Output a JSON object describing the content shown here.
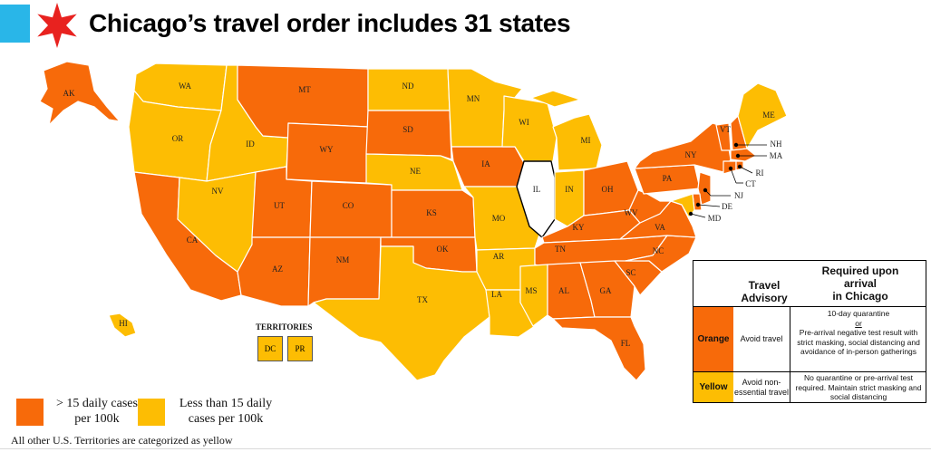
{
  "title": "Chicago’s travel order includes 31 states",
  "colors": {
    "orange": "#f76a0a",
    "yellow": "#fdbd03",
    "accent_blue": "#29b6e8",
    "star_red": "#e8221f",
    "illinois": "#ffffff"
  },
  "states": {
    "AK": {
      "label": "AK",
      "category": "orange"
    },
    "WA": {
      "label": "WA",
      "category": "yellow"
    },
    "OR": {
      "label": "OR",
      "category": "yellow"
    },
    "CA": {
      "label": "CA",
      "category": "orange"
    },
    "ID": {
      "label": "ID",
      "category": "yellow"
    },
    "NV": {
      "label": "NV",
      "category": "yellow"
    },
    "MT": {
      "label": "MT",
      "category": "orange"
    },
    "WY": {
      "label": "WY",
      "category": "orange"
    },
    "UT": {
      "label": "UT",
      "category": "orange"
    },
    "AZ": {
      "label": "AZ",
      "category": "orange"
    },
    "CO": {
      "label": "CO",
      "category": "orange"
    },
    "NM": {
      "label": "NM",
      "category": "orange"
    },
    "ND": {
      "label": "ND",
      "category": "yellow"
    },
    "SD": {
      "label": "SD",
      "category": "orange"
    },
    "NE": {
      "label": "NE",
      "category": "yellow"
    },
    "KS": {
      "label": "KS",
      "category": "orange"
    },
    "OK": {
      "label": "OK",
      "category": "orange"
    },
    "TX": {
      "label": "TX",
      "category": "yellow"
    },
    "MN": {
      "label": "MN",
      "category": "yellow"
    },
    "IA": {
      "label": "IA",
      "category": "orange"
    },
    "MO": {
      "label": "MO",
      "category": "yellow"
    },
    "AR": {
      "label": "AR",
      "category": "yellow"
    },
    "LA": {
      "label": "LA",
      "category": "yellow"
    },
    "WI": {
      "label": "WI",
      "category": "yellow"
    },
    "IL": {
      "label": "IL",
      "category": "illinois"
    },
    "MI": {
      "label": "MI",
      "category": "yellow"
    },
    "IN": {
      "label": "IN",
      "category": "yellow"
    },
    "OH": {
      "label": "OH",
      "category": "orange"
    },
    "KY": {
      "label": "KY",
      "category": "orange"
    },
    "TN": {
      "label": "TN",
      "category": "orange"
    },
    "MS": {
      "label": "MS",
      "category": "yellow"
    },
    "AL": {
      "label": "AL",
      "category": "orange"
    },
    "GA": {
      "label": "GA",
      "category": "orange"
    },
    "FL": {
      "label": "FL",
      "category": "orange"
    },
    "SC": {
      "label": "SC",
      "category": "orange"
    },
    "NC": {
      "label": "NC",
      "category": "orange"
    },
    "VA": {
      "label": "VA",
      "category": "orange"
    },
    "WV": {
      "label": "WV",
      "category": "orange"
    },
    "PA": {
      "label": "PA",
      "category": "orange"
    },
    "NY": {
      "label": "NY",
      "category": "orange"
    },
    "VT": {
      "label": "VT",
      "category": "orange"
    },
    "ME": {
      "label": "ME",
      "category": "yellow"
    },
    "NH": {
      "label": "NH",
      "category": "orange"
    },
    "MA": {
      "label": "MA",
      "category": "orange"
    },
    "RI": {
      "label": "RI",
      "category": "orange"
    },
    "CT": {
      "label": "CT",
      "category": "orange"
    },
    "NJ": {
      "label": "NJ",
      "category": "orange"
    },
    "DE": {
      "label": "DE",
      "category": "orange"
    },
    "MD": {
      "label": "MD",
      "category": "yellow"
    },
    "HI": {
      "label": "HI",
      "category": "yellow"
    }
  },
  "territories": {
    "heading": "TERRITORIES",
    "items": [
      "DC",
      "PR"
    ]
  },
  "legend": {
    "orange_label_line1": "> 15 daily cases",
    "orange_label_line2": "per 100k",
    "yellow_label_line1": "Less than 15 daily",
    "yellow_label_line2": "cases per 100k"
  },
  "footnote": "All other U.S. Territories are categorized as yellow",
  "table": {
    "header_advisory_line1": "Travel",
    "header_advisory_line2": "Advisory",
    "header_required_line1": "Required upon",
    "header_required_line2": "arrival",
    "header_required_line3": "in Chicago",
    "orange_row": {
      "color_label": "Orange",
      "advisory": "Avoid travel",
      "req_line1": "10-day quarantine",
      "req_or": "or",
      "req_line3": "Pre-arrival negative test result with strict masking, social distancing and avoidance of in-person gatherings"
    },
    "yellow_row": {
      "color_label": "Yellow",
      "advisory": "Avoid non-essential travel",
      "req": "No quarantine or pre-arrival test required. Maintain strict masking and social distancing"
    }
  }
}
